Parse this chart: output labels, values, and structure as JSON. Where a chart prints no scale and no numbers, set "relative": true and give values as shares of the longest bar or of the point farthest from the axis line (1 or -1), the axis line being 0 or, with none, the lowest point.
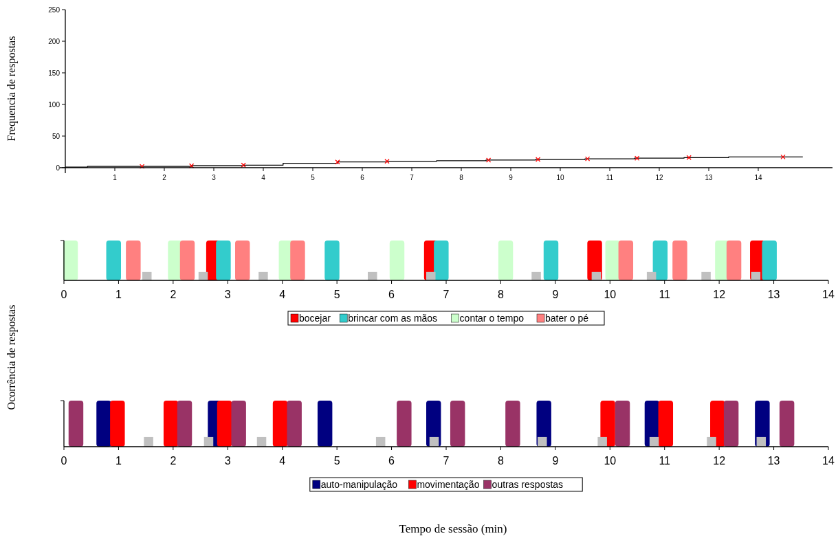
{
  "chart_data": [
    {
      "type": "step",
      "ylabel": "Frequencia de respostas",
      "xlim": [
        0,
        15.5
      ],
      "xticks": [
        1,
        2,
        3,
        4,
        5,
        6,
        7,
        8,
        9,
        10,
        11,
        12,
        13,
        14
      ],
      "ylim": [
        0,
        250
      ],
      "yticks": [
        0,
        50,
        100,
        150,
        200,
        250
      ],
      "legend": false,
      "series": [
        {
          "color": "#000000",
          "x": [
            0,
            0.45,
            2.55,
            3.6,
            4.4,
            5.5,
            6.5,
            7.5,
            8.5,
            9.5,
            10.5,
            11.5,
            12.5,
            13.4,
            14.9
          ],
          "values": [
            1,
            2,
            3,
            4,
            7,
            9,
            10,
            11,
            12,
            13,
            14,
            15,
            16,
            17,
            17
          ]
        },
        {
          "type": "scatter",
          "marker": "cross",
          "color": "#ff0000",
          "x": [
            1.55,
            2.55,
            3.6,
            5.5,
            6.5,
            8.55,
            9.55,
            10.55,
            11.55,
            12.6,
            14.5
          ],
          "values": [
            2,
            3,
            4,
            9,
            10,
            12,
            13,
            14,
            15,
            16,
            17
          ]
        }
      ]
    },
    {
      "type": "bar",
      "relative": true,
      "ylabel": "Ocorrência de respostas",
      "xlim": [
        0,
        14
      ],
      "xticks": [
        0,
        1,
        2,
        3,
        4,
        5,
        6,
        7,
        8,
        9,
        10,
        11,
        12,
        13,
        14
      ],
      "legend": "bottom",
      "series": [
        {
          "name": "bocejar",
          "color": "#ff0000",
          "x": [
            2.74,
            6.73,
            9.72,
            12.7
          ],
          "values": [
            1,
            1,
            1,
            1
          ]
        },
        {
          "name": "brincar com as mãos",
          "color": "#33cccc",
          "x": [
            0.91,
            2.92,
            4.91,
            6.91,
            8.92,
            10.92,
            12.92
          ],
          "values": [
            1,
            1,
            1,
            1,
            1,
            1,
            1
          ]
        },
        {
          "name": "contar o tempo",
          "color": "#ccffcc",
          "x": [
            0.12,
            2.04,
            4.07,
            6.1,
            8.09,
            10.05,
            12.06
          ],
          "values": [
            1,
            1,
            1,
            1,
            1,
            1,
            1
          ]
        },
        {
          "name": "bater o pé",
          "color": "#ff8080",
          "x": [
            1.27,
            2.26,
            3.27,
            4.28,
            10.29,
            11.28,
            12.27
          ],
          "values": [
            1,
            1,
            1,
            1,
            1,
            1,
            1
          ]
        },
        {
          "color": "#c0c0c0",
          "x": [
            1.52,
            2.55,
            3.65,
            5.65,
            6.72,
            8.65,
            9.75,
            10.76,
            11.76,
            12.67
          ],
          "values": [
            0.21,
            0.21,
            0.21,
            0.21,
            0.21,
            0.21,
            0.21,
            0.21,
            0.21,
            0.21
          ]
        }
      ]
    },
    {
      "type": "bar",
      "relative": true,
      "xlabel": "Tempo de sessão (min)",
      "xlim": [
        0,
        14
      ],
      "xticks": [
        0,
        1,
        2,
        3,
        4,
        5,
        6,
        7,
        8,
        9,
        10,
        11,
        12,
        13,
        14
      ],
      "legend": "bottom",
      "series": [
        {
          "name": "auto-manipulação",
          "color": "#000080",
          "x": [
            0.73,
            2.77,
            4.78,
            6.77,
            8.79,
            10.77,
            12.79
          ],
          "values": [
            1,
            1,
            1,
            1,
            1,
            1,
            1
          ]
        },
        {
          "name": "movimentação",
          "color": "#ff0000",
          "x": [
            0.98,
            1.96,
            2.94,
            3.96,
            9.96,
            11.02,
            11.97
          ],
          "values": [
            1,
            1,
            1,
            1,
            1,
            1,
            1
          ]
        },
        {
          "name": "outras respostas",
          "color": "#993366",
          "x": [
            0.22,
            2.21,
            3.2,
            4.22,
            6.23,
            7.21,
            8.22,
            10.23,
            12.22,
            13.24
          ],
          "values": [
            1,
            1,
            1,
            1,
            1,
            1,
            1,
            1,
            1,
            1
          ]
        },
        {
          "color": "#c0c0c0",
          "x": [
            1.55,
            2.65,
            3.62,
            5.8,
            6.78,
            8.76,
            9.86,
            10.81,
            11.86,
            12.77
          ],
          "values": [
            0.21,
            0.21,
            0.21,
            0.21,
            0.21,
            0.21,
            0.21,
            0.21,
            0.21,
            0.21
          ]
        }
      ]
    }
  ]
}
